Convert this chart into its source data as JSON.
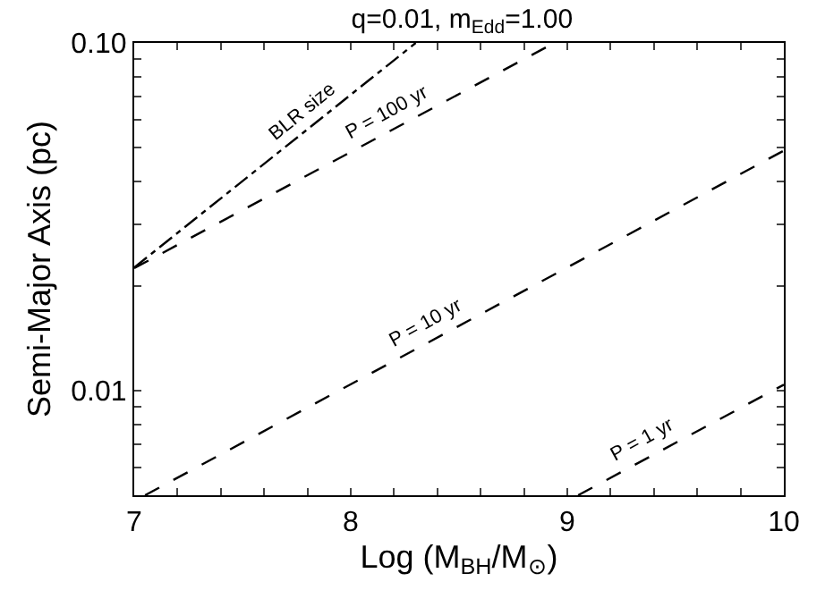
{
  "chart_data": {
    "type": "line",
    "title": "q=0.01, m$_{Edd}$=1.00",
    "xlabel": "Log (M$_{BH}$/M$_{⊙}$)",
    "ylabel": "Semi-Major Axis (pc)",
    "log": "y",
    "legend": false,
    "marker": "none",
    "xlim": [
      7,
      10
    ],
    "ylim": [
      0.005,
      0.1
    ],
    "xticks": [
      7,
      {
        "value": 7.2,
        "label": null
      },
      {
        "value": 7.4,
        "label": null
      },
      {
        "value": 7.6,
        "label": null
      },
      {
        "value": 7.8,
        "label": null
      },
      8,
      {
        "value": 8.2,
        "label": null
      },
      {
        "value": 8.4,
        "label": null
      },
      {
        "value": 8.6,
        "label": null
      },
      {
        "value": 8.8,
        "label": null
      },
      9,
      {
        "value": 9.2,
        "label": null
      },
      {
        "value": 9.4,
        "label": null
      },
      {
        "value": 9.6,
        "label": null
      },
      {
        "value": 9.8,
        "label": null
      },
      10
    ],
    "yticks": [
      {
        "value": 0.005,
        "label": null
      },
      {
        "value": 0.006,
        "label": null
      },
      {
        "value": 0.007,
        "label": null
      },
      {
        "value": 0.008,
        "label": null
      },
      {
        "value": 0.009,
        "label": null
      },
      0.01,
      {
        "value": 0.02,
        "label": null
      },
      {
        "value": 0.03,
        "label": null
      },
      {
        "value": 0.04,
        "label": null
      },
      {
        "value": 0.05,
        "label": null
      },
      {
        "value": 0.06,
        "label": null
      },
      {
        "value": 0.07,
        "label": null
      },
      {
        "value": 0.08,
        "label": null
      },
      {
        "value": 0.09,
        "label": null
      },
      {
        "value": 0.1,
        "label": "0.10"
      }
    ],
    "series": [
      {
        "name": "BLR size",
        "color": "#000000",
        "line_style": "dashdot",
        "x": [
          7,
          8.3
        ],
        "values": [
          0.0226,
          0.1
        ]
      },
      {
        "name": "P = 100 yr",
        "color": "#000000",
        "line_style": "dashed",
        "x": [
          7,
          8.94
        ],
        "values": [
          0.0225,
          0.1
        ]
      },
      {
        "name": "P = 10 yr",
        "color": "#000000",
        "line_style": "dashed",
        "x": [
          7.05,
          10
        ],
        "values": [
          0.005,
          0.049
        ]
      },
      {
        "name": "P = 1 yr",
        "color": "#000000",
        "line_style": "dashed",
        "x": [
          9.05,
          10
        ],
        "values": [
          0.005,
          0.0104
        ]
      }
    ]
  }
}
